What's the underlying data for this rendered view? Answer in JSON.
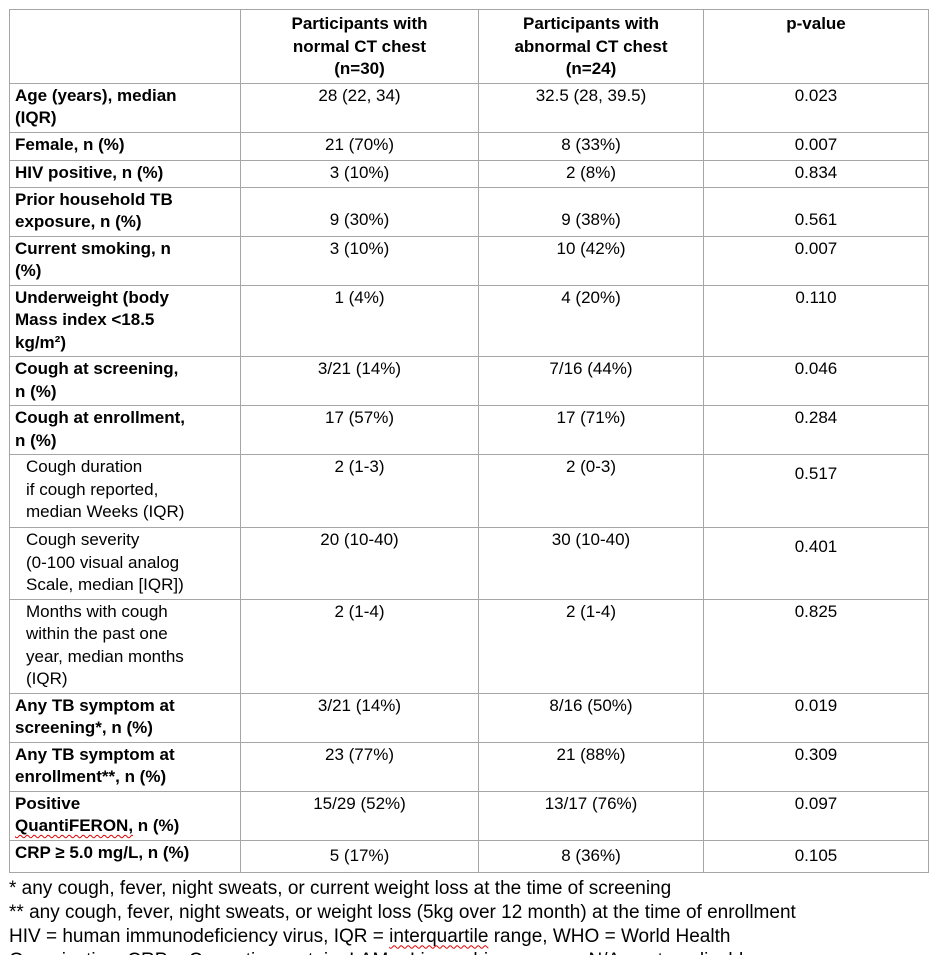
{
  "colors": {
    "text": "#000000",
    "table_border": "#a6a6a6",
    "misspelling_underline": "#e00000",
    "background": "#ffffff"
  },
  "table": {
    "columns": [
      {
        "label": ""
      },
      {
        "label": "Participants with\nnormal CT chest\n(n=30)"
      },
      {
        "label": "Participants with\nabnormal CT chest\n(n=24)"
      },
      {
        "label": "p-value"
      }
    ],
    "rows": [
      {
        "label": "Age (years), median\n(IQR)",
        "values": [
          "28 (22, 34)",
          "32.5 (28, 39.5)",
          "0.023"
        ]
      },
      {
        "label": "Female, n (%)",
        "values": [
          "21 (70%)",
          "8 (33%)",
          "0.007"
        ]
      },
      {
        "label": "HIV positive, n (%)",
        "values": [
          "3 (10%)",
          "2 (8%)",
          "0.834"
        ]
      },
      {
        "label": "Prior household TB\nexposure, n (%)",
        "values": [
          "9 (30%)",
          "9 (38%)",
          "0.561"
        ]
      },
      {
        "label": "Current smoking, n\n(%)",
        "values": [
          "3 (10%)",
          "10 (42%)",
          "0.007"
        ]
      },
      {
        "label": "Underweight (body\nMass index <18.5\nkg/m²)",
        "values": [
          "1 (4%)",
          "4 (20%)",
          "0.110"
        ]
      },
      {
        "label": "Cough at screening,\nn (%)",
        "values": [
          "3/21 (14%)",
          "7/16 (44%)",
          "0.046"
        ]
      },
      {
        "label": "Cough at enrollment,\nn (%)",
        "values": [
          "17 (57%)",
          "17 (71%)",
          "0.284"
        ]
      },
      {
        "label": "Cough duration\nif cough reported,\nmedian Weeks (IQR)",
        "sub": true,
        "values": [
          "2 (1-3)",
          "2 (0-3)",
          "0.517"
        ]
      },
      {
        "label": "Cough severity\n(0-100 visual analog\nScale, median [IQR])",
        "sub": true,
        "values": [
          "20 (10-40)",
          "30 (10-40)",
          "0.401"
        ]
      },
      {
        "label": "Months with cough\nwithin the past one\nyear, median months\n(IQR)",
        "sub": true,
        "values": [
          "2 (1-4)",
          "2 (1-4)",
          "0.825"
        ]
      },
      {
        "label": "Any TB symptom at\nscreening*, n (%)",
        "values": [
          "3/21 (14%)",
          "8/16 (50%)",
          "0.019"
        ]
      },
      {
        "label": "Any TB symptom at\nenrollment**, n (%)",
        "values": [
          "23 (77%)",
          "21 (88%)",
          "0.309"
        ]
      },
      {
        "label": "Positive\nQuantiFERON, n (%)",
        "misspelled": [
          "QuantiFERON,"
        ],
        "values": [
          "15/29 (52%)",
          "13/17 (76%)",
          "0.097"
        ]
      },
      {
        "label": "CRP ≥ 5.0 mg/L, n (%)",
        "values": [
          "5 (17%)",
          "8 (36%)",
          "0.105"
        ]
      }
    ]
  },
  "footnotes": [
    {
      "text": "* any cough, fever, night sweats, or current weight loss at the time of screening"
    },
    {
      "text": "** any cough, fever, night sweats, or weight loss (5kg over 12 month) at the time of enrollment"
    },
    {
      "text": "HIV = human immunodeficiency virus, IQR = interquartile range, WHO = World Health\nOrganization, CRP = C-reactive protein, LAM = Lipoarabinomannan, N/A= not applicable",
      "misspelled": [
        "interquartile",
        "Lipoarabinomannan,"
      ]
    }
  ]
}
